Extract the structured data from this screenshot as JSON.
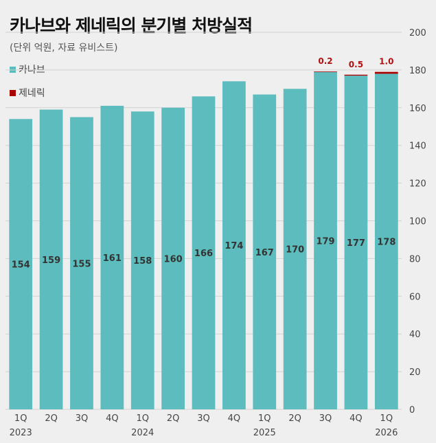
{
  "chart_data": {
    "type": "bar",
    "title": "카나브와 제네릭의 분기별 처방실적",
    "subtitle": "(단위 억원, 자료 유비스트)",
    "categories": [
      "1Q",
      "2Q",
      "3Q",
      "4Q",
      "1Q",
      "2Q",
      "3Q",
      "4Q",
      "1Q",
      "2Q",
      "3Q",
      "4Q",
      "1Q"
    ],
    "year_labels": [
      "2023",
      "",
      "",
      "",
      "2024",
      "",
      "",
      "",
      "2025",
      "",
      "",
      "",
      "2026"
    ],
    "series": [
      {
        "name": "카나브",
        "color": "#5dbcbd",
        "values": [
          154,
          159,
          155,
          161,
          158,
          160,
          166,
          174,
          167,
          170,
          179,
          177,
          178
        ]
      },
      {
        "name": "제네릭",
        "color": "#a80000",
        "values": [
          null,
          null,
          null,
          null,
          null,
          null,
          null,
          null,
          null,
          null,
          0.2,
          0.5,
          1.0
        ],
        "labels": [
          "",
          "",
          "",
          "",
          "",
          "",
          "",
          "",
          "",
          "",
          "0.2",
          "0.5",
          "1.0"
        ]
      }
    ],
    "ylim": [
      0,
      200
    ],
    "yticks": [
      "0",
      "20",
      "40",
      "60",
      "80",
      "100",
      "120",
      "140",
      "160",
      "180",
      "200"
    ],
    "grid": true,
    "legend_position": "top-left"
  }
}
